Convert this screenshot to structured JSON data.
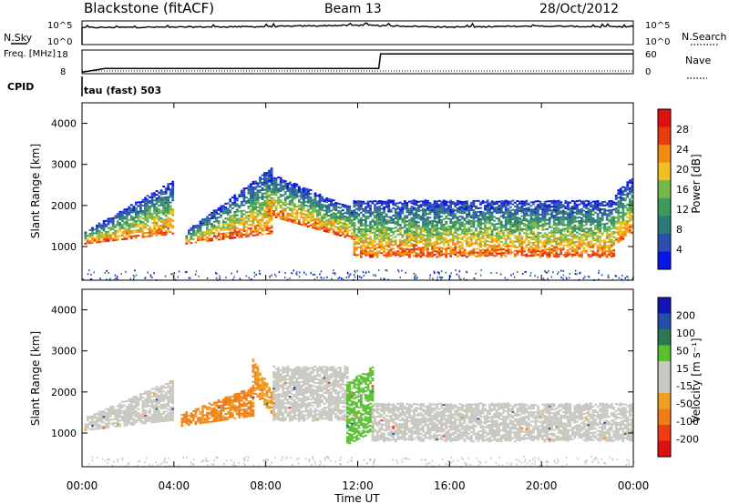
{
  "header": {
    "radar": "Blackstone (fitACF)",
    "beam": "Beam 13",
    "date": "28/Oct/2012"
  },
  "colors": {
    "power": [
      "#0a14e6",
      "#2a4fb0",
      "#2b7a79",
      "#3c9a5a",
      "#74b84a",
      "#f0c020",
      "#f08c10",
      "#e83c10",
      "#e01010"
    ],
    "velocity": [
      "#e01010",
      "#f03c10",
      "#f07c18",
      "#f0a020",
      "#c8c8c0",
      "#c8c8c0",
      "#58c030",
      "#2e7a50",
      "#234fa8",
      "#1414b4"
    ]
  },
  "chart_data": [
    {
      "type": "line",
      "panel": "sky-noise",
      "ylabel": "N.Sky",
      "y2label": "N.Search",
      "yticks": [
        "10^5",
        "10^0"
      ],
      "y2ticks": [
        "10^5",
        "10^0"
      ],
      "x": [
        "00:00",
        "04:00",
        "08:00",
        "12:00",
        "16:00",
        "20:00",
        "24:00"
      ],
      "values": [
        3.6,
        3.7,
        3.8,
        4.1,
        3.7,
        3.9,
        3.7
      ]
    },
    {
      "type": "line",
      "panel": "frequency",
      "ylabel": "Freq. [MHz]",
      "y2label": "Nave",
      "cpid_label": "CPID",
      "yticks": [
        "18",
        "8"
      ],
      "y2ticks": [
        "60",
        "0"
      ],
      "series": [
        {
          "x": [
            "00:00",
            "01:00",
            "12:55",
            "13:00",
            "24:00"
          ],
          "values": [
            8.6,
            10.2,
            10.2,
            16.4,
            16.4
          ]
        }
      ],
      "cpid_annotation": "tau (fast) 503"
    },
    {
      "type": "heatmap",
      "panel": "power",
      "ylabel": "Slant Range [km]",
      "yticks": [
        "1000",
        "2000",
        "3000",
        "4000"
      ],
      "ylim": [
        180,
        4500
      ],
      "colorbar_label": "Power [dB]",
      "colorbar_ticks": [
        "4",
        "8",
        "12",
        "16",
        "20",
        "24",
        "28"
      ],
      "colorbar_range": [
        0,
        32
      ],
      "bands": [
        {
          "t0": 0.1,
          "t1": 4.0,
          "r0": 1050,
          "r1": 2600,
          "core": 1250
        },
        {
          "t0": 4.5,
          "t1": 8.2,
          "r0": 1050,
          "r1": 2900,
          "core": 1350
        },
        {
          "t0": 8.0,
          "t1": 11.8,
          "r0": 1150,
          "r1": 2800,
          "core": 1400
        },
        {
          "t0": 11.8,
          "t1": 23.2,
          "r0": 750,
          "r1": 2100,
          "core": 1000
        },
        {
          "t0": 23.2,
          "t1": 24.0,
          "r0": 1050,
          "r1": 2300,
          "core": 1250
        }
      ]
    },
    {
      "type": "heatmap",
      "panel": "velocity",
      "xlabel": "Time UT",
      "ylabel": "Slant Range [km]",
      "yticks": [
        "1000",
        "2000",
        "3000",
        "4000"
      ],
      "xticks": [
        "00:00",
        "04:00",
        "08:00",
        "12:00",
        "16:00",
        "20:00",
        "00:00"
      ],
      "ylim": [
        180,
        4500
      ],
      "colorbar_label": "Velocity [m s⁻¹]",
      "colorbar_ticks": [
        "200",
        "100",
        "50",
        "15",
        "-15",
        "-50",
        "-100",
        "-200"
      ],
      "colorbar_range": [
        -250,
        250
      ],
      "bands": [
        {
          "t0": 0.1,
          "t1": 4.0,
          "r0": 1050,
          "r1": 2300,
          "v": 0
        },
        {
          "t0": 4.3,
          "t1": 7.4,
          "r0": 1150,
          "r1": 2100,
          "v": -60
        },
        {
          "t0": 7.4,
          "t1": 8.3,
          "r0": 1400,
          "r1": 2800,
          "v": -45
        },
        {
          "t0": 8.3,
          "t1": 11.5,
          "r0": 1300,
          "r1": 2600,
          "v": 0
        },
        {
          "t0": 11.5,
          "t1": 12.6,
          "r0": 700,
          "r1": 2200,
          "v": 30
        },
        {
          "t0": 12.6,
          "t1": 24.0,
          "r0": 800,
          "r1": 1700,
          "v": 0
        }
      ]
    }
  ]
}
